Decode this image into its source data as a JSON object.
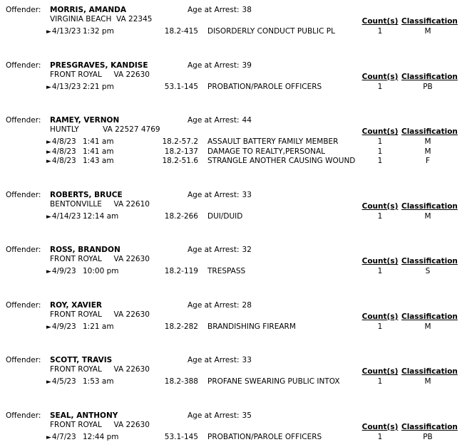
{
  "labels": {
    "offender": "Offender:",
    "age_prefix": "Age at Arrest:",
    "counts_header": "Count(s)",
    "classification_header": "Classification",
    "arrow_marker": "►"
  },
  "offenders": [
    {
      "name": "MORRIS, AMANDA",
      "age": "38",
      "address": "VIRGINIA BEACH  VA 22345",
      "arrests": [
        {
          "date": "4/13/23",
          "time": "1:32 pm",
          "code": "18.2-415",
          "charge": "DISORDERLY CONDUCT PUBLIC PL",
          "counts": "1",
          "classification": "M"
        }
      ]
    },
    {
      "name": "PRESGRAVES, KANDISE",
      "age": "39",
      "address": "FRONT ROYAL     VA 22630",
      "arrests": [
        {
          "date": "4/13/23",
          "time": "2:21 pm",
          "code": "53.1-145",
          "charge": "PROBATION/PAROLE OFFICERS",
          "counts": "1",
          "classification": "PB"
        }
      ]
    },
    {
      "name": "RAMEY, VERNON",
      "age": "44",
      "address": "HUNTLY          VA 22527 4769",
      "arrests": [
        {
          "date": "4/8/23",
          "time": "1:41 am",
          "code": "18.2-57.2",
          "charge": "ASSAULT BATTERY FAMILY MEMBER",
          "counts": "1",
          "classification": "M"
        },
        {
          "date": "4/8/23",
          "time": "1:41 am",
          "code": "18.2-137",
          "charge": "DAMAGE TO REALTY,PERSONAL",
          "counts": "1",
          "classification": "M"
        },
        {
          "date": "4/8/23",
          "time": "1:43 am",
          "code": "18.2-51.6",
          "charge": "STRANGLE ANOTHER CAUSING WOUND",
          "counts": "1",
          "classification": "F"
        }
      ]
    },
    {
      "name": "ROBERTS, BRUCE",
      "age": "33",
      "address": "BENTONVILLE     VA 22610",
      "arrests": [
        {
          "date": "4/14/23",
          "time": "12:14 am",
          "code": "18.2-266",
          "charge": "DUI/DUID",
          "counts": "1",
          "classification": "M"
        }
      ]
    },
    {
      "name": "ROSS, BRANDON",
      "age": "32",
      "address": "FRONT ROYAL     VA 22630",
      "arrests": [
        {
          "date": "4/9/23",
          "time": "10:00 pm",
          "code": "18.2-119",
          "charge": "TRESPASS",
          "counts": "1",
          "classification": "S"
        }
      ]
    },
    {
      "name": "ROY, XAVIER",
      "age": "28",
      "address": "FRONT ROYAL     VA 22630",
      "arrests": [
        {
          "date": "4/9/23",
          "time": "1:21 am",
          "code": "18.2-282",
          "charge": "BRANDISHING FIREARM",
          "counts": "1",
          "classification": "M"
        }
      ]
    },
    {
      "name": "SCOTT, TRAVIS",
      "age": "33",
      "address": "FRONT ROYAL     VA 22630",
      "arrests": [
        {
          "date": "4/5/23",
          "time": "1:53 am",
          "code": "18.2-388",
          "charge": "PROFANE SWEARING PUBLIC INTOX",
          "counts": "1",
          "classification": "M"
        }
      ]
    },
    {
      "name": "SEAL, ANTHONY",
      "age": "35",
      "address": "FRONT ROYAL     VA 22630",
      "arrests": [
        {
          "date": "4/7/23",
          "time": "12:44 pm",
          "code": "53.1-145",
          "charge": "PROBATION/PAROLE OFFICERS",
          "counts": "1",
          "classification": "PB"
        }
      ]
    }
  ]
}
